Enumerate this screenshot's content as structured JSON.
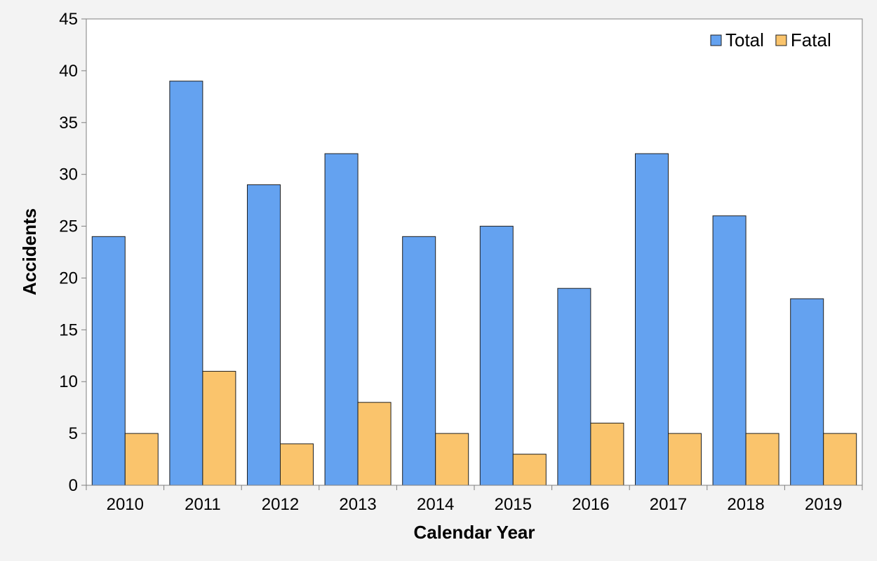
{
  "chart_data": {
    "type": "bar",
    "title": "",
    "xlabel": "Calendar Year",
    "ylabel": "Accidents",
    "categories": [
      "2010",
      "2011",
      "2012",
      "2013",
      "2014",
      "2015",
      "2016",
      "2017",
      "2018",
      "2019"
    ],
    "series": [
      {
        "name": "Total",
        "color": "#64a2f0",
        "values": [
          24,
          39,
          29,
          32,
          24,
          25,
          19,
          32,
          26,
          18
        ]
      },
      {
        "name": "Fatal",
        "color": "#fac46c",
        "values": [
          5,
          11,
          4,
          8,
          5,
          3,
          6,
          5,
          5,
          5
        ]
      }
    ],
    "ylim": [
      0,
      45
    ],
    "yticks": [
      0,
      5,
      10,
      15,
      20,
      25,
      30,
      35,
      40,
      45
    ],
    "grid": false,
    "legend_position": "top-right"
  }
}
